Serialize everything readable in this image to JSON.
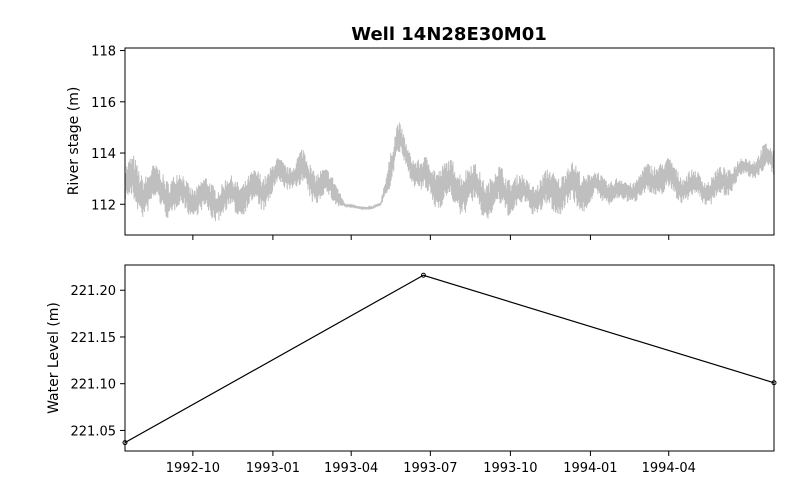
{
  "figure": {
    "title": "Well 14N28E30M01"
  },
  "chart_data": [
    {
      "type": "line",
      "panel": "top",
      "ylabel": "River stage (m)",
      "xlim": [
        "1992-07-15",
        "1994-07-31"
      ],
      "ylim": [
        110.8,
        118.1
      ],
      "yticks": [
        112,
        114,
        116,
        118
      ],
      "grid": false,
      "series": [
        {
          "color": "#bfbfbf",
          "x": [
            "1992-07-15",
            "1992-07-25",
            "1992-08-05",
            "1992-08-20",
            "1992-09-05",
            "1992-09-20",
            "1992-10-05",
            "1992-10-20",
            "1992-11-05",
            "1992-11-20",
            "1992-12-05",
            "1992-12-20",
            "1993-01-05",
            "1993-01-20",
            "1993-02-05",
            "1993-02-20",
            "1993-03-01",
            "1993-03-15",
            "1993-03-25",
            "1993-04-10",
            "1993-04-25",
            "1993-05-05",
            "1993-05-15",
            "1993-05-25",
            "1993-06-05",
            "1993-06-20",
            "1993-07-05",
            "1993-07-20",
            "1993-08-05",
            "1993-08-20",
            "1993-09-05",
            "1993-09-20",
            "1993-10-05",
            "1993-10-20",
            "1993-11-05",
            "1993-11-20",
            "1993-12-05",
            "1993-12-20",
            "1994-01-05",
            "1994-01-20",
            "1994-02-05",
            "1994-02-20",
            "1994-03-05",
            "1994-03-20",
            "1994-04-05",
            "1994-04-20",
            "1994-05-05",
            "1994-05-20",
            "1994-06-05",
            "1994-06-20",
            "1994-07-05",
            "1994-07-20",
            "1994-07-31"
          ],
          "low": [
            112.0,
            111.6,
            111.5,
            111.8,
            111.4,
            111.6,
            111.5,
            111.3,
            111.4,
            111.5,
            111.7,
            111.7,
            112.4,
            112.6,
            112.3,
            112.0,
            112.1,
            111.9,
            111.9,
            111.8,
            111.8,
            111.9,
            112.6,
            113.6,
            113.2,
            112.2,
            111.9,
            111.8,
            111.6,
            111.6,
            111.4,
            111.5,
            111.6,
            111.7,
            111.5,
            111.5,
            111.7,
            111.6,
            112.0,
            112.0,
            111.9,
            112.1,
            112.1,
            112.3,
            112.2,
            112.0,
            112.1,
            111.9,
            112.2,
            112.8,
            113.0,
            113.1,
            113.0
          ],
          "high": [
            113.6,
            113.9,
            113.6,
            113.5,
            113.4,
            113.2,
            112.9,
            113.1,
            113.0,
            113.2,
            113.2,
            113.5,
            113.8,
            113.7,
            114.2,
            113.6,
            113.4,
            113.1,
            112.0,
            111.95,
            111.9,
            112.1,
            114.2,
            115.3,
            114.4,
            113.8,
            113.9,
            113.7,
            113.8,
            113.6,
            113.3,
            113.5,
            113.4,
            113.0,
            113.2,
            113.5,
            113.6,
            113.7,
            113.3,
            113.2,
            113.0,
            113.1,
            113.5,
            114.0,
            113.7,
            113.4,
            113.3,
            113.2,
            113.6,
            113.8,
            113.9,
            114.4,
            114.2
          ]
        }
      ]
    },
    {
      "type": "line",
      "panel": "bottom",
      "ylabel": "Water Level (m)",
      "xlim": [
        "1992-07-15",
        "1994-07-31"
      ],
      "ylim": [
        221.028,
        221.227
      ],
      "yticks": [
        "221.05",
        "221.10",
        "221.15",
        "221.20"
      ],
      "xticks": [
        "1992-10",
        "1993-01",
        "1993-04",
        "1993-07",
        "1993-10",
        "1994-01",
        "1994-04"
      ],
      "grid": false,
      "series": [
        {
          "color": "#000000",
          "marker": "circle",
          "x": [
            "1992-07-15",
            "1993-06-23",
            "1994-07-31"
          ],
          "y": [
            221.037,
            221.216,
            221.101
          ]
        }
      ]
    }
  ]
}
